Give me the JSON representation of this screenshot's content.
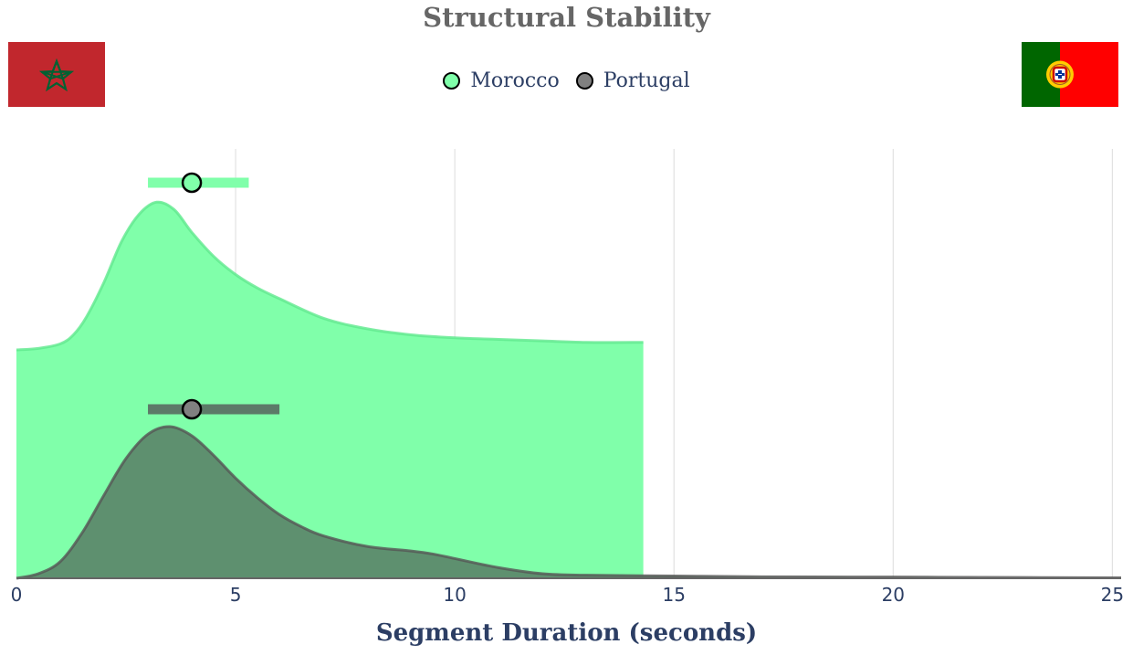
{
  "chart_data": {
    "type": "area",
    "title": "Structural Stability",
    "xlabel": "Segment Duration (seconds)",
    "ylabel": "",
    "xlim": [
      0,
      25.2
    ],
    "xticks": [
      0,
      5,
      10,
      15,
      20,
      25
    ],
    "tick_labels": [
      "0",
      "5",
      "10",
      "15",
      "20",
      "25"
    ],
    "grid": "vertical",
    "legend_position": "top-center",
    "series": [
      {
        "name": "Morocco",
        "color": "#80ffaa",
        "line_color": "#5fe88d",
        "marker_color": "#80ffaa",
        "point_estimate": 4.0,
        "interval": [
          3.0,
          5.3
        ],
        "density_x": [
          0,
          0.5,
          1.0,
          1.3,
          1.6,
          2.0,
          2.4,
          2.8,
          3.2,
          3.6,
          4.0,
          4.5,
          5.0,
          5.5,
          6.0,
          7.0,
          8.0,
          9.0,
          10.0,
          11.0,
          12.0,
          13.0,
          14.3
        ],
        "density_y": [
          0.0,
          0.01,
          0.04,
          0.1,
          0.22,
          0.45,
          0.72,
          0.9,
          0.98,
          0.93,
          0.78,
          0.62,
          0.5,
          0.41,
          0.34,
          0.21,
          0.14,
          0.1,
          0.08,
          0.07,
          0.06,
          0.05,
          0.05
        ]
      },
      {
        "name": "Portugal",
        "color": "#5c8a6c",
        "line_color": "#555555",
        "marker_color": "#808080",
        "point_estimate": 4.0,
        "interval": [
          3.0,
          6.0
        ],
        "density_x": [
          0,
          0.5,
          1.0,
          1.5,
          2.0,
          2.5,
          3.0,
          3.5,
          4.0,
          4.5,
          5.0,
          5.5,
          6.0,
          6.5,
          7.0,
          8.0,
          9.0,
          9.5,
          10.0,
          11.0,
          12.0,
          13.0,
          15.0,
          17.0,
          20.0,
          23.0,
          25.2
        ],
        "density_y": [
          0.0,
          0.03,
          0.11,
          0.3,
          0.55,
          0.79,
          0.95,
          1.0,
          0.94,
          0.81,
          0.66,
          0.53,
          0.42,
          0.34,
          0.28,
          0.21,
          0.18,
          0.16,
          0.13,
          0.07,
          0.03,
          0.02,
          0.015,
          0.01,
          0.008,
          0.005,
          0.003
        ]
      }
    ]
  },
  "flags": {
    "left": {
      "country": "Morocco",
      "icon": "morocco-flag-icon",
      "bg": "#c1272d",
      "star": "#006233"
    },
    "right": {
      "country": "Portugal",
      "icon": "portugal-flag-icon",
      "green": "#006600",
      "red": "#ff0000",
      "emblem": "#ffcc00"
    }
  }
}
